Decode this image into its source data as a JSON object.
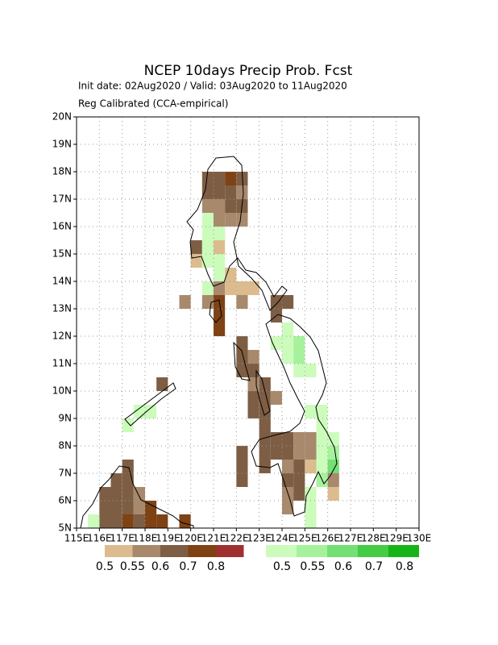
{
  "title": "NCEP 10days Precip Prob. Fcst",
  "subtitle": [
    "Init date: 02Aug2020 / Valid: 03Aug2020 to 11Aug2020",
    "Reg Calibrated (CCA-empirical)"
  ],
  "map": {
    "lonlim": [
      115,
      130
    ],
    "latlim": [
      5,
      20
    ],
    "cell": 0.5,
    "grid": true,
    "lonticks": [
      {
        "value": 115,
        "label": "115E"
      },
      {
        "value": 116,
        "label": "116E"
      },
      {
        "value": 117,
        "label": "117E"
      },
      {
        "value": 118,
        "label": "118E"
      },
      {
        "value": 119,
        "label": "119E"
      },
      {
        "value": 120,
        "label": "120E"
      },
      {
        "value": 121,
        "label": "121E"
      },
      {
        "value": 122,
        "label": "122E"
      },
      {
        "value": 123,
        "label": "123E"
      },
      {
        "value": 124,
        "label": "124E"
      },
      {
        "value": 125,
        "label": "125E"
      },
      {
        "value": 126,
        "label": "126E"
      },
      {
        "value": 127,
        "label": "127E"
      },
      {
        "value": 128,
        "label": "128E"
      },
      {
        "value": 129,
        "label": "129E"
      },
      {
        "value": 130,
        "label": "130E"
      }
    ],
    "latticks": [
      {
        "value": 5,
        "label": "5N"
      },
      {
        "value": 6,
        "label": "6N"
      },
      {
        "value": 7,
        "label": "7N"
      },
      {
        "value": 8,
        "label": "8N"
      },
      {
        "value": 9,
        "label": "9N"
      },
      {
        "value": 10,
        "label": "10N"
      },
      {
        "value": 11,
        "label": "11N"
      },
      {
        "value": 12,
        "label": "12N"
      },
      {
        "value": 13,
        "label": "13N"
      },
      {
        "value": 14,
        "label": "14N"
      },
      {
        "value": 15,
        "label": "15N"
      },
      {
        "value": 16,
        "label": "16N"
      },
      {
        "value": 17,
        "label": "17N"
      },
      {
        "value": 18,
        "label": "18N"
      },
      {
        "value": 19,
        "label": "19N"
      },
      {
        "value": 20,
        "label": "20N"
      }
    ],
    "dry": {
      "levels": [
        0.5,
        0.55,
        0.6,
        0.7,
        0.8
      ],
      "colors": [
        "#dcbc8e",
        "#a8896c",
        "#7d5e44",
        "#7e4214",
        "#a03030"
      ],
      "cells": [
        [
          120.5,
          17.5,
          0.6
        ],
        [
          121,
          17.5,
          0.6
        ],
        [
          121.5,
          17.5,
          0.7
        ],
        [
          122,
          17.5,
          0.6
        ],
        [
          120.5,
          17,
          0.6
        ],
        [
          121,
          17,
          0.6
        ],
        [
          121.5,
          17,
          0.6
        ],
        [
          122,
          17,
          0.55
        ],
        [
          120.5,
          16.5,
          0.55
        ],
        [
          121,
          16.5,
          0.55
        ],
        [
          121.5,
          16.5,
          0.6
        ],
        [
          122,
          16.5,
          0.6
        ],
        [
          121,
          16,
          0.55
        ],
        [
          121.5,
          16,
          0.55
        ],
        [
          122,
          16,
          0.55
        ],
        [
          121,
          15.5,
          0.5
        ],
        [
          120,
          15,
          0.6
        ],
        [
          121,
          15,
          0.5
        ],
        [
          120,
          14.5,
          0.5
        ],
        [
          121.5,
          14,
          0.5
        ],
        [
          121,
          13.5,
          0.55
        ],
        [
          121.5,
          13.5,
          0.5
        ],
        [
          122,
          13.5,
          0.5
        ],
        [
          122.5,
          13.5,
          0.5
        ],
        [
          119.5,
          13,
          0.55
        ],
        [
          120.5,
          13,
          0.55
        ],
        [
          121,
          13,
          0.7
        ],
        [
          122,
          13,
          0.55
        ],
        [
          123.5,
          13,
          0.6
        ],
        [
          124,
          13,
          0.6
        ],
        [
          121,
          12.5,
          0.7
        ],
        [
          123.5,
          12.5,
          0.6
        ],
        [
          121,
          12,
          0.7
        ],
        [
          122,
          11.5,
          0.6
        ],
        [
          122,
          11,
          0.6
        ],
        [
          122.5,
          11,
          0.55
        ],
        [
          122,
          10.5,
          0.6
        ],
        [
          122.5,
          10.5,
          0.6
        ],
        [
          122.5,
          10,
          0.55
        ],
        [
          123,
          10,
          0.6
        ],
        [
          118.5,
          10,
          0.6
        ],
        [
          123,
          9.5,
          0.6
        ],
        [
          122.5,
          9.5,
          0.6
        ],
        [
          123.5,
          9.5,
          0.55
        ],
        [
          122.5,
          9,
          0.6
        ],
        [
          123,
          9,
          0.6
        ],
        [
          123,
          8.5,
          0.6
        ],
        [
          123,
          8,
          0.6
        ],
        [
          123.5,
          8,
          0.6
        ],
        [
          124,
          8,
          0.6
        ],
        [
          124.5,
          8,
          0.55
        ],
        [
          125,
          8,
          0.55
        ],
        [
          122,
          7.5,
          0.6
        ],
        [
          123,
          7.5,
          0.6
        ],
        [
          123.5,
          7.5,
          0.6
        ],
        [
          124,
          7.5,
          0.6
        ],
        [
          124.5,
          7.5,
          0.55
        ],
        [
          125,
          7.5,
          0.55
        ],
        [
          122,
          7,
          0.6
        ],
        [
          123,
          7,
          0.6
        ],
        [
          124,
          7,
          0.55
        ],
        [
          124.5,
          7,
          0.6
        ],
        [
          125,
          7,
          0.5
        ],
        [
          122,
          6.5,
          0.6
        ],
        [
          124,
          6.5,
          0.6
        ],
        [
          124.5,
          6.5,
          0.6
        ],
        [
          126,
          6.5,
          0.55
        ],
        [
          124,
          6,
          0.55
        ],
        [
          124.5,
          6,
          0.6
        ],
        [
          126,
          6,
          0.5
        ],
        [
          124,
          5.5,
          0.55
        ],
        [
          117,
          7,
          0.6
        ],
        [
          116.5,
          6.5,
          0.6
        ],
        [
          117,
          6.5,
          0.6
        ],
        [
          116,
          6,
          0.6
        ],
        [
          116.5,
          6,
          0.6
        ],
        [
          117,
          6,
          0.6
        ],
        [
          117.5,
          6,
          0.55
        ],
        [
          116,
          5.5,
          0.6
        ],
        [
          116.5,
          5.5,
          0.6
        ],
        [
          117,
          5.5,
          0.6
        ],
        [
          117.5,
          5.5,
          0.55
        ],
        [
          118,
          5.5,
          0.7
        ],
        [
          116,
          5,
          0.6
        ],
        [
          116.5,
          5,
          0.6
        ],
        [
          117,
          5,
          0.7
        ],
        [
          117.5,
          5,
          0.6
        ],
        [
          118,
          5,
          0.7
        ],
        [
          118.5,
          5,
          0.7
        ],
        [
          119.5,
          5,
          0.7
        ]
      ]
    },
    "wet": {
      "levels": [
        0.5,
        0.55,
        0.6,
        0.7,
        0.8
      ],
      "colors": [
        "#ccfcbc",
        "#a6f29c",
        "#74df74",
        "#44cc44",
        "#16b416"
      ],
      "cells": [
        [
          120.5,
          16,
          0.5
        ],
        [
          120.5,
          15.5,
          0.5
        ],
        [
          121,
          15.5,
          0.5
        ],
        [
          120.5,
          15,
          0.5
        ],
        [
          120.5,
          14.5,
          0.5
        ],
        [
          121,
          14.5,
          0.5
        ],
        [
          121,
          14,
          0.5
        ],
        [
          120.5,
          13.5,
          0.5
        ],
        [
          124,
          12,
          0.5
        ],
        [
          124,
          11.5,
          0.5
        ],
        [
          124.5,
          11.5,
          0.55
        ],
        [
          123.5,
          11.5,
          0.5
        ],
        [
          124.5,
          11,
          0.55
        ],
        [
          124,
          11,
          0.5
        ],
        [
          124.5,
          10.5,
          0.5
        ],
        [
          125,
          10.5,
          0.5
        ],
        [
          117.5,
          9,
          0.5
        ],
        [
          118,
          9,
          0.5
        ],
        [
          125,
          9,
          0.5
        ],
        [
          125.5,
          9,
          0.5
        ],
        [
          117,
          8.5,
          0.5
        ],
        [
          125.5,
          8.5,
          0.5
        ],
        [
          125.5,
          8,
          0.5
        ],
        [
          126,
          8,
          0.5
        ],
        [
          125.5,
          7.5,
          0.5
        ],
        [
          126,
          7.5,
          0.55
        ],
        [
          125.5,
          7,
          0.5
        ],
        [
          126,
          7,
          0.6
        ],
        [
          125.5,
          6.5,
          0.55
        ],
        [
          125,
          6,
          0.5
        ],
        [
          125,
          5.5,
          0.5
        ],
        [
          125,
          5,
          0.5
        ],
        [
          115.5,
          5,
          0.5
        ]
      ]
    }
  }
}
